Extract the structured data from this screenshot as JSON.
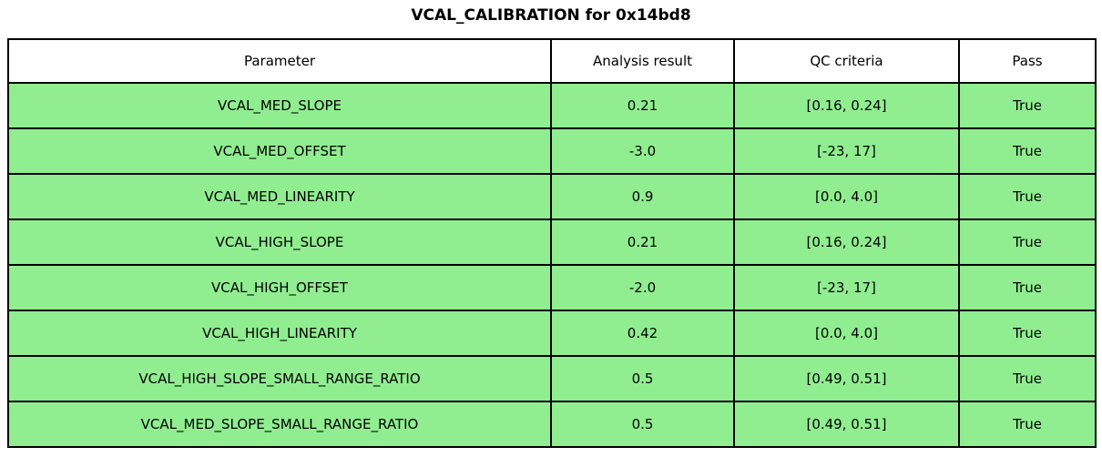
{
  "title": "VCAL_CALIBRATION for 0x14bd8",
  "colors": {
    "pass_row_bg": "#90EE90",
    "header_bg": "#ffffff",
    "border": "#000000",
    "text": "#000000"
  },
  "chart_data": {
    "type": "table",
    "title": "VCAL_CALIBRATION for 0x14bd8",
    "columns": [
      "Parameter",
      "Analysis result",
      "QC criteria",
      "Pass"
    ],
    "rows": [
      {
        "parameter": "VCAL_MED_SLOPE",
        "analysis_result": "0.21",
        "qc_criteria": "[0.16, 0.24]",
        "pass": "True"
      },
      {
        "parameter": "VCAL_MED_OFFSET",
        "analysis_result": "-3.0",
        "qc_criteria": "[-23, 17]",
        "pass": "True"
      },
      {
        "parameter": "VCAL_MED_LINEARITY",
        "analysis_result": "0.9",
        "qc_criteria": "[0.0, 4.0]",
        "pass": "True"
      },
      {
        "parameter": "VCAL_HIGH_SLOPE",
        "analysis_result": "0.21",
        "qc_criteria": "[0.16, 0.24]",
        "pass": "True"
      },
      {
        "parameter": "VCAL_HIGH_OFFSET",
        "analysis_result": "-2.0",
        "qc_criteria": "[-23, 17]",
        "pass": "True"
      },
      {
        "parameter": "VCAL_HIGH_LINEARITY",
        "analysis_result": "0.42",
        "qc_criteria": "[0.0, 4.0]",
        "pass": "True"
      },
      {
        "parameter": "VCAL_HIGH_SLOPE_SMALL_RANGE_RATIO",
        "analysis_result": "0.5",
        "qc_criteria": "[0.49, 0.51]",
        "pass": "True"
      },
      {
        "parameter": "VCAL_MED_SLOPE_SMALL_RANGE_RATIO",
        "analysis_result": "0.5",
        "qc_criteria": "[0.49, 0.51]",
        "pass": "True"
      }
    ],
    "layout": {
      "legend": "none",
      "grid": "table-borders",
      "header_row_background": "white",
      "data_row_background": "lightgreen",
      "all_rows_pass": true
    }
  }
}
